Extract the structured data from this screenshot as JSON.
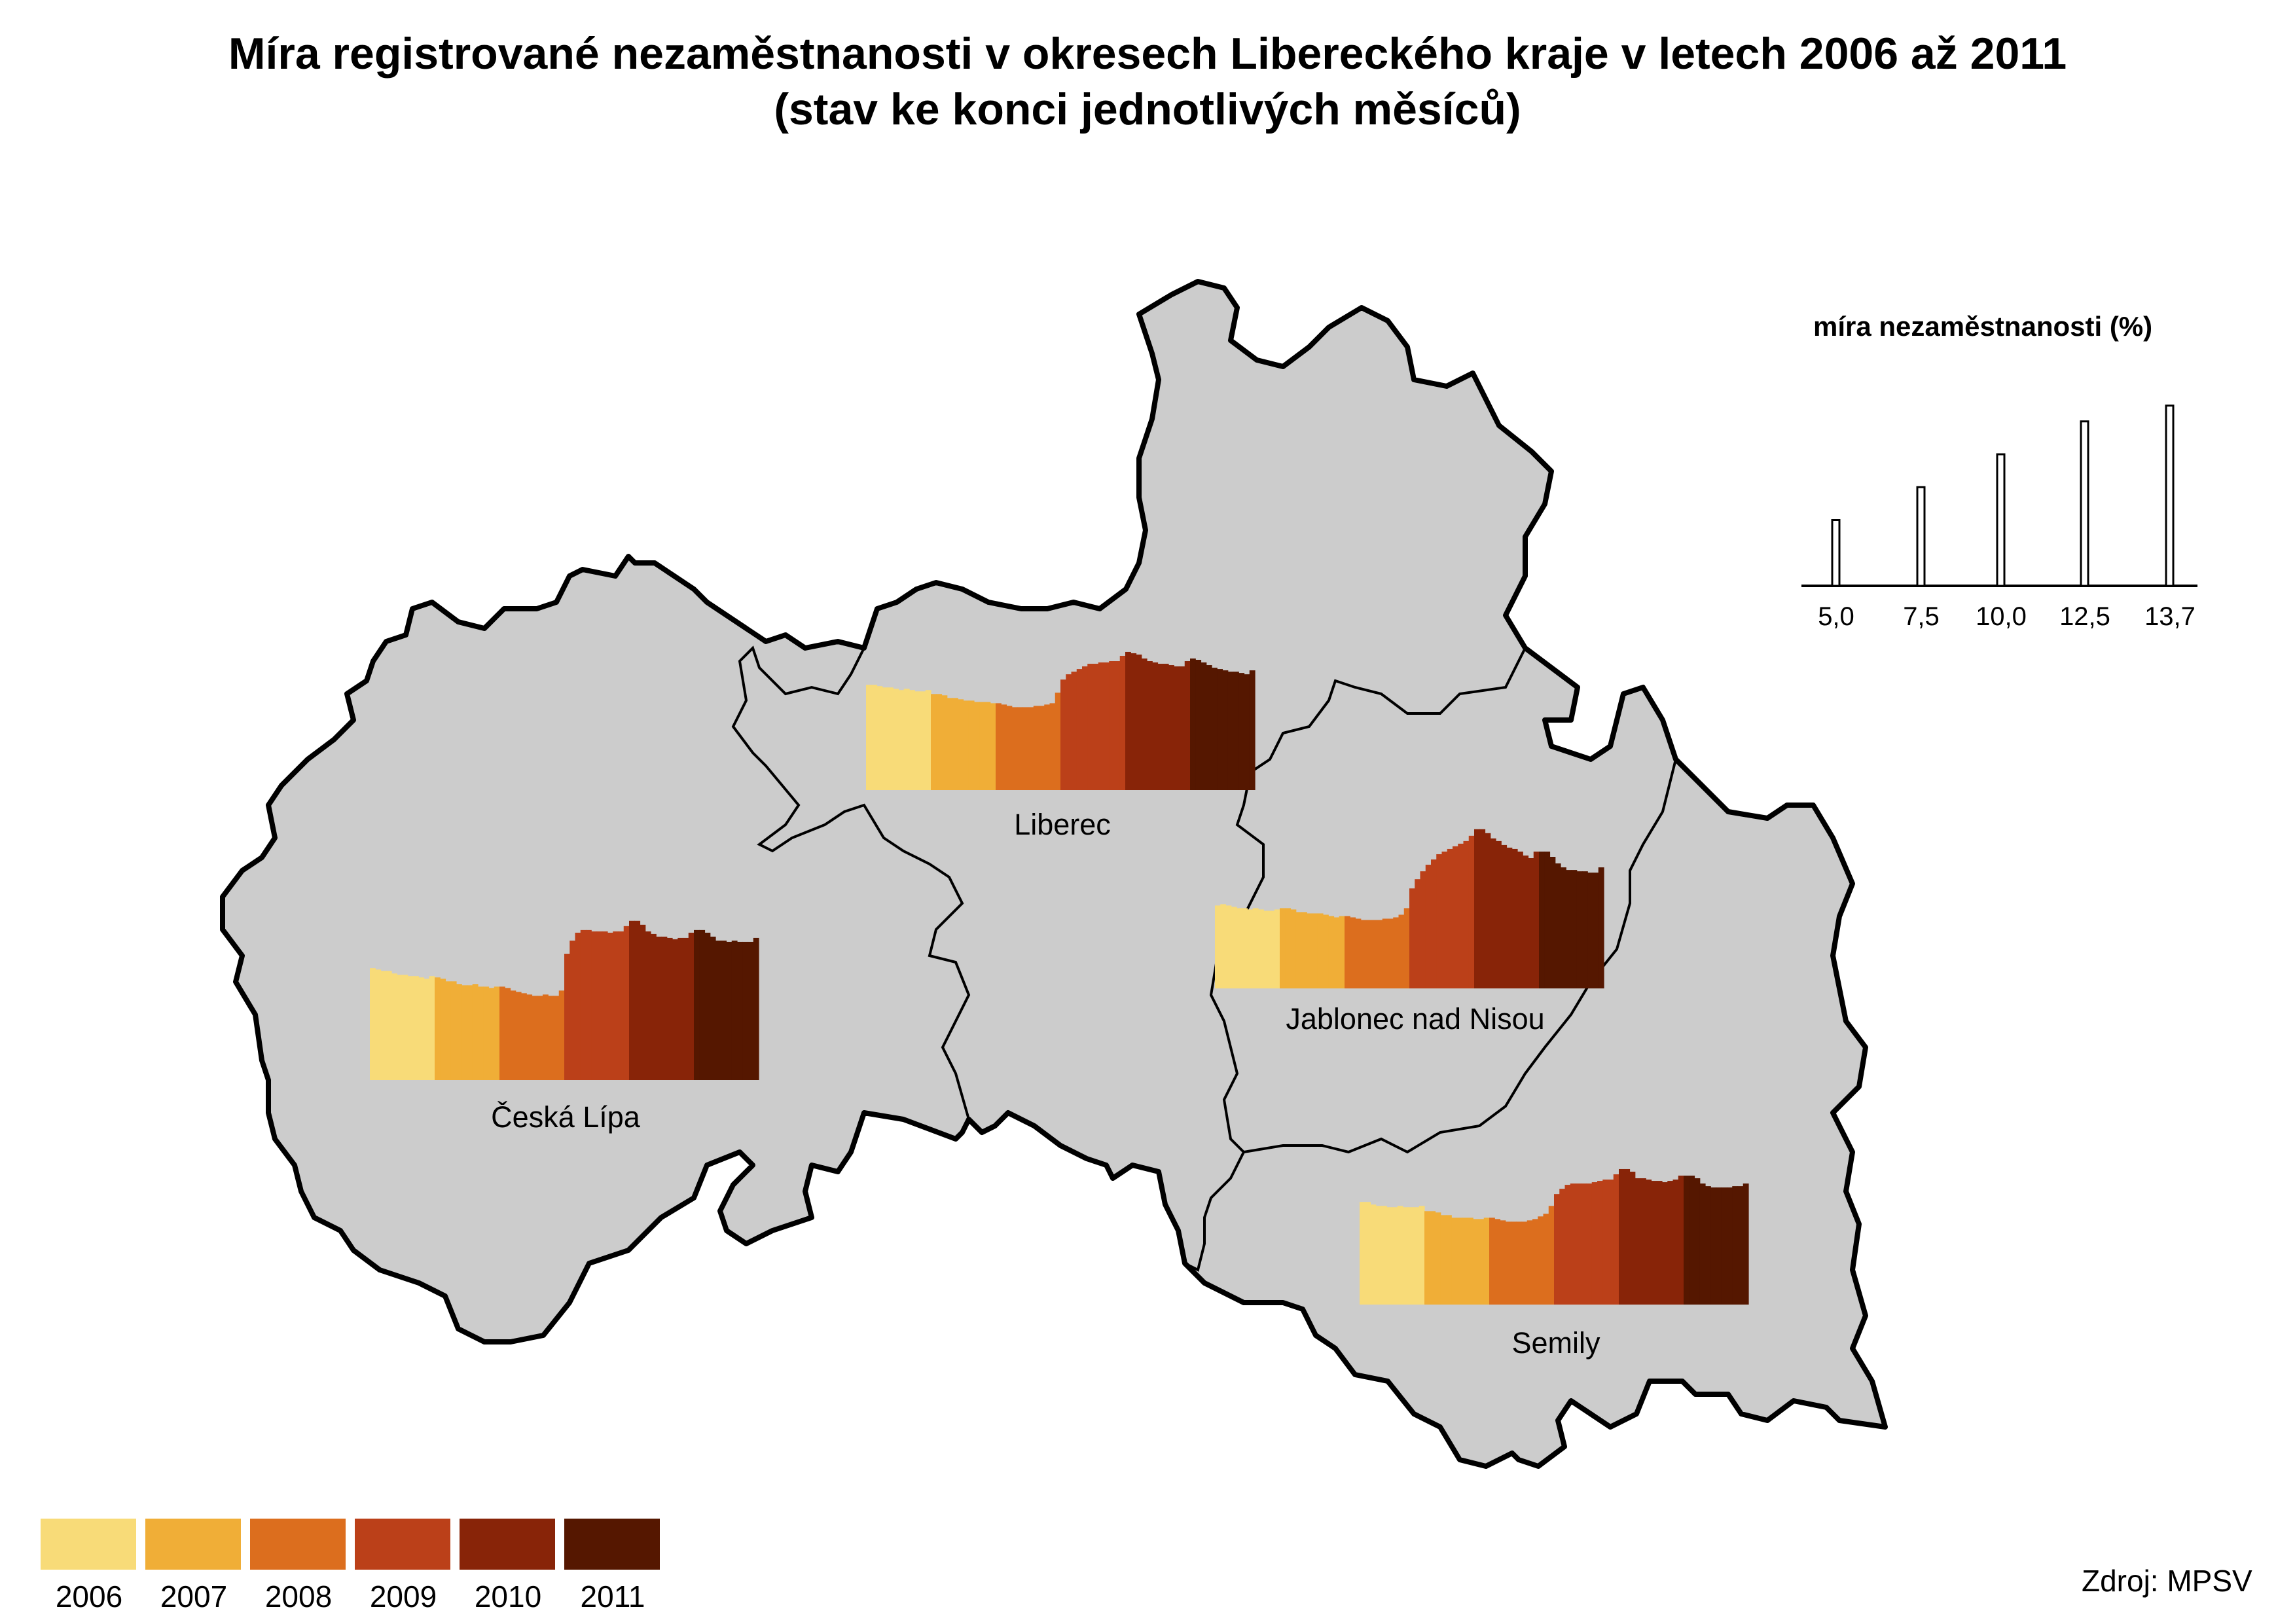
{
  "title_line1": "Míra registrované nezaměstnanosti v okresech Libereckého kraje v letech 2006 až 2011",
  "title_line2": "(stav ke konci jednotlivých měsíců)",
  "source": "Zdroj: MPSV",
  "colors": {
    "region_fill": "#cccccc",
    "border": "#000000",
    "years": [
      "#f8db78",
      "#f0ae37",
      "#dc6e1e",
      "#bb4019",
      "#882408",
      "#551700"
    ]
  },
  "legend": [
    {
      "year": "2006",
      "color": "#f8db78"
    },
    {
      "year": "2007",
      "color": "#f0ae37"
    },
    {
      "year": "2008",
      "color": "#dc6e1e"
    },
    {
      "year": "2009",
      "color": "#bb4019"
    },
    {
      "year": "2010",
      "color": "#882408"
    },
    {
      "year": "2011",
      "color": "#551700"
    }
  ],
  "scale": {
    "title": "míra nezaměstnanosti (%)",
    "values": [
      5.0,
      7.5,
      10.0,
      12.5,
      13.7
    ],
    "labels": [
      "5,0",
      "7,5",
      "10,0",
      "12,5",
      "13,7"
    ]
  },
  "chart_data": [
    {
      "type": "bar",
      "district": "Česká Lípa",
      "years": [
        "2006",
        "2007",
        "2008",
        "2009",
        "2010",
        "2011"
      ],
      "unit": "%",
      "values": [
        [
          8.5,
          8.4,
          8.3,
          8.3,
          8.1,
          8.0,
          8.0,
          7.9,
          7.9,
          7.8,
          7.7,
          7.9
        ],
        [
          7.8,
          7.7,
          7.5,
          7.5,
          7.3,
          7.2,
          7.2,
          7.3,
          7.1,
          7.1,
          7.0,
          7.1
        ],
        [
          7.1,
          7.0,
          6.8,
          6.7,
          6.6,
          6.5,
          6.4,
          6.4,
          6.5,
          6.4,
          6.4,
          6.8
        ],
        [
          9.6,
          10.6,
          11.2,
          11.4,
          11.4,
          11.3,
          11.3,
          11.3,
          11.2,
          11.3,
          11.3,
          11.7
        ],
        [
          12.1,
          12.1,
          11.8,
          11.3,
          11.1,
          10.9,
          10.9,
          10.8,
          10.7,
          10.8,
          10.8,
          11.2
        ],
        [
          11.4,
          11.4,
          11.2,
          10.9,
          10.6,
          10.6,
          10.5,
          10.6,
          10.5,
          10.5,
          10.5,
          10.8
        ]
      ]
    },
    {
      "type": "bar",
      "district": "Liberec",
      "years": [
        "2006",
        "2007",
        "2008",
        "2009",
        "2010",
        "2011"
      ],
      "unit": "%",
      "values": [
        [
          8.0,
          8.0,
          7.9,
          7.8,
          7.8,
          7.7,
          7.6,
          7.7,
          7.6,
          7.5,
          7.5,
          7.6
        ],
        [
          7.3,
          7.3,
          7.2,
          7.0,
          7.0,
          6.9,
          6.8,
          6.8,
          6.7,
          6.7,
          6.7,
          6.6
        ],
        [
          6.6,
          6.5,
          6.4,
          6.3,
          6.3,
          6.3,
          6.3,
          6.4,
          6.4,
          6.5,
          6.6,
          7.4
        ],
        [
          8.4,
          8.8,
          9.0,
          9.2,
          9.4,
          9.6,
          9.6,
          9.7,
          9.7,
          9.8,
          9.8,
          10.2
        ],
        [
          10.5,
          10.4,
          10.3,
          10.0,
          9.8,
          9.7,
          9.6,
          9.6,
          9.5,
          9.4,
          9.4,
          9.8
        ],
        [
          10.0,
          9.9,
          9.7,
          9.5,
          9.3,
          9.2,
          9.1,
          9.0,
          9.0,
          8.9,
          8.8,
          9.1
        ]
      ]
    },
    {
      "type": "bar",
      "district": "Jablonec nad Nisou",
      "years": [
        "2006",
        "2007",
        "2008",
        "2009",
        "2010",
        "2011"
      ],
      "unit": "%",
      "values": [
        [
          6.3,
          6.4,
          6.3,
          6.2,
          6.1,
          6.1,
          6.0,
          6.1,
          6.0,
          5.9,
          5.9,
          6.0
        ],
        [
          6.1,
          6.1,
          6.0,
          5.8,
          5.8,
          5.7,
          5.7,
          5.7,
          5.6,
          5.5,
          5.4,
          5.5
        ],
        [
          5.5,
          5.4,
          5.3,
          5.2,
          5.2,
          5.2,
          5.2,
          5.3,
          5.3,
          5.4,
          5.6,
          6.1
        ],
        [
          7.6,
          8.3,
          8.9,
          9.4,
          9.8,
          10.2,
          10.4,
          10.6,
          10.8,
          11.0,
          11.2,
          11.6
        ],
        [
          12.1,
          12.1,
          11.8,
          11.4,
          11.2,
          10.9,
          10.7,
          10.6,
          10.4,
          10.1,
          9.9,
          10.4
        ],
        [
          10.4,
          10.4,
          10.0,
          9.5,
          9.2,
          9.0,
          9.0,
          8.9,
          8.9,
          8.8,
          8.8,
          9.2
        ]
      ]
    },
    {
      "type": "bar",
      "district": "Semily",
      "years": [
        "2006",
        "2007",
        "2008",
        "2009",
        "2010",
        "2011"
      ],
      "unit": "%",
      "values": [
        [
          7.8,
          7.8,
          7.6,
          7.5,
          7.5,
          7.4,
          7.4,
          7.5,
          7.4,
          7.4,
          7.4,
          7.5
        ],
        [
          7.1,
          7.1,
          7.0,
          6.8,
          6.8,
          6.6,
          6.6,
          6.6,
          6.6,
          6.5,
          6.5,
          6.6
        ],
        [
          6.6,
          6.5,
          6.4,
          6.3,
          6.3,
          6.3,
          6.3,
          6.4,
          6.5,
          6.7,
          6.9,
          7.5
        ],
        [
          8.4,
          8.8,
          9.1,
          9.2,
          9.2,
          9.2,
          9.2,
          9.3,
          9.4,
          9.5,
          9.5,
          9.9
        ],
        [
          10.3,
          10.3,
          10.1,
          9.6,
          9.6,
          9.5,
          9.4,
          9.4,
          9.3,
          9.4,
          9.5,
          9.8
        ],
        [
          9.8,
          9.8,
          9.6,
          9.2,
          9.0,
          8.9,
          8.9,
          8.9,
          8.9,
          9.0,
          9.0,
          9.2
        ]
      ]
    }
  ]
}
